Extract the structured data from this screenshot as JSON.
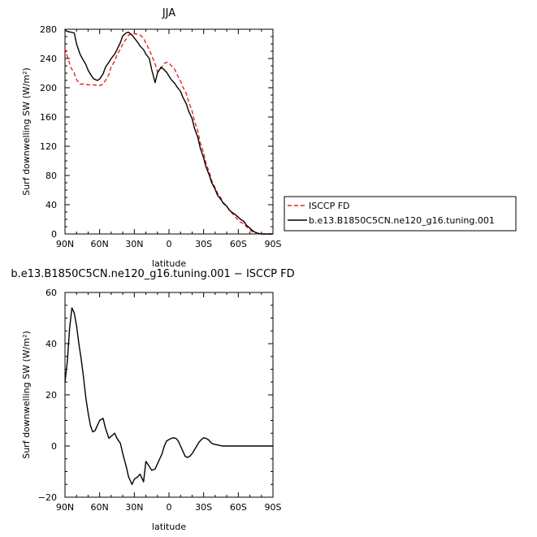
{
  "chart_data": [
    {
      "type": "line",
      "title": "JJA",
      "xlabel": "latitude",
      "ylabel": "Surf downwelling SW (W/m²)",
      "xlim": [
        90,
        -90
      ],
      "ylim": [
        0,
        280
      ],
      "xticks": [
        90,
        60,
        30,
        0,
        -30,
        -60,
        -90
      ],
      "xtick_labels": [
        "90N",
        "60N",
        "30N",
        "0",
        "30S",
        "60S",
        "90S"
      ],
      "yticks": [
        0,
        40,
        80,
        120,
        160,
        200,
        240,
        280
      ],
      "ytick_labels": [
        "0",
        "40",
        "80",
        "120",
        "160",
        "200",
        "240",
        "280"
      ],
      "legend_position": "right",
      "series": [
        {
          "name": "ISCCP FD",
          "color": "#e8231c",
          "dash": "dashed",
          "x": [
            90,
            88,
            85,
            82,
            80,
            77,
            75,
            72,
            70,
            67,
            65,
            62,
            60,
            57,
            55,
            52,
            50,
            47,
            45,
            42,
            40,
            37,
            35,
            32,
            30,
            27,
            25,
            22,
            20,
            17,
            15,
            12,
            10,
            7,
            5,
            2,
            0,
            -2,
            -5,
            -7,
            -10,
            -12,
            -15,
            -17,
            -20,
            -22,
            -25,
            -27,
            -30,
            -32,
            -35,
            -37,
            -40,
            -42,
            -45,
            -47,
            -50,
            -52,
            -55,
            -57,
            -60,
            -62,
            -65,
            -67,
            -70,
            -72,
            -75,
            -77,
            -80,
            -82,
            -85,
            -90
          ],
          "y": [
            254,
            243,
            228,
            220,
            211,
            205,
            205,
            205,
            204,
            204,
            204,
            203,
            203,
            205,
            210,
            218,
            229,
            236,
            245,
            253,
            260,
            267,
            272,
            274,
            274,
            273,
            272,
            268,
            261,
            252,
            244,
            233,
            222,
            226,
            232,
            235,
            234,
            230,
            225,
            218,
            209,
            201,
            192,
            181,
            168,
            155,
            140,
            125,
            111,
            97,
            84,
            73,
            63,
            56,
            49,
            43,
            38,
            33,
            28,
            24,
            19,
            16,
            14,
            10,
            6,
            3,
            1,
            0,
            0,
            0,
            0,
            0
          ]
        },
        {
          "name": "b.e13.B1850C5CN.ne120_g16.tuning.001",
          "color": "#000000",
          "dash": "solid",
          "x": [
            90,
            88,
            85,
            82,
            80,
            77,
            75,
            72,
            70,
            67,
            65,
            62,
            60,
            57,
            55,
            52,
            50,
            47,
            45,
            42,
            40,
            37,
            35,
            32,
            30,
            27,
            25,
            22,
            20,
            17,
            15,
            12,
            10,
            7,
            5,
            2,
            0,
            -2,
            -5,
            -7,
            -10,
            -12,
            -15,
            -17,
            -20,
            -22,
            -25,
            -27,
            -30,
            -32,
            -35,
            -37,
            -40,
            -42,
            -45,
            -47,
            -50,
            -52,
            -55,
            -57,
            -60,
            -62,
            -65,
            -67,
            -70,
            -72,
            -75,
            -77,
            -80,
            -82,
            -85,
            -90
          ],
          "y": [
            279,
            277,
            276,
            275,
            260,
            246,
            240,
            232,
            224,
            216,
            212,
            210,
            212,
            219,
            228,
            235,
            240,
            246,
            252,
            262,
            271,
            275,
            276,
            272,
            268,
            262,
            257,
            252,
            246,
            240,
            225,
            207,
            220,
            228,
            226,
            221,
            216,
            211,
            206,
            201,
            195,
            187,
            178,
            168,
            158,
            145,
            132,
            118,
            104,
            92,
            80,
            70,
            61,
            53,
            47,
            42,
            38,
            33,
            29,
            27,
            23,
            20,
            17,
            12,
            8,
            5,
            2,
            1,
            0,
            0,
            0,
            0
          ]
        }
      ]
    },
    {
      "type": "line",
      "title": "b.e13.B1850C5CN.ne120_g16.tuning.001 − ISCCP FD",
      "xlabel": "latitude",
      "ylabel": "Surf downwelling SW (W/m²)",
      "xlim": [
        90,
        -90
      ],
      "ylim": [
        -20,
        60
      ],
      "xticks": [
        90,
        60,
        30,
        0,
        -30,
        -60,
        -90
      ],
      "xtick_labels": [
        "90N",
        "60N",
        "30N",
        "0",
        "30S",
        "60S",
        "90S"
      ],
      "yticks": [
        -20,
        0,
        20,
        40,
        60
      ],
      "ytick_labels": [
        "−20",
        "0",
        "20",
        "40",
        "60"
      ],
      "series": [
        {
          "color": "#000000",
          "dash": "solid",
          "x": [
            90,
            88,
            86,
            84,
            82,
            80,
            78,
            76,
            74,
            72,
            70,
            68,
            66,
            64,
            62,
            60,
            57,
            55,
            52,
            50,
            47,
            45,
            42,
            40,
            37,
            35,
            32,
            30,
            27,
            25,
            22,
            20,
            17,
            15,
            12,
            10,
            8,
            6,
            4,
            2,
            0,
            -2,
            -4,
            -6,
            -8,
            -10,
            -12,
            -14,
            -16,
            -18,
            -20,
            -22,
            -24,
            -26,
            -28,
            -30,
            -32,
            -34,
            -36,
            -38,
            -40,
            -42,
            -44,
            -46,
            -48,
            -50,
            -52,
            -54,
            -56,
            -58,
            -60,
            -62,
            -64,
            -66,
            -68,
            -70,
            -72,
            -75,
            -78,
            -80,
            -83,
            -86,
            -90
          ],
          "y": [
            25,
            33,
            46,
            54,
            52,
            47,
            40,
            34,
            27,
            19,
            13,
            8,
            5.5,
            6,
            8,
            10,
            10.8,
            7,
            3,
            3.8,
            5,
            3,
            1,
            -3,
            -8,
            -12,
            -15,
            -13,
            -12,
            -11,
            -14,
            -6,
            -8,
            -9.5,
            -9,
            -7,
            -5,
            -3,
            0,
            2,
            2.5,
            3,
            3.2,
            3,
            2,
            0,
            -2,
            -4,
            -4.5,
            -4,
            -3,
            -1.5,
            0,
            1.5,
            2.5,
            3.2,
            3,
            2.5,
            1.5,
            0.8,
            0.6,
            0.4,
            0.2,
            0,
            0,
            0,
            0,
            0,
            0,
            0,
            0,
            0,
            0,
            0,
            0,
            0,
            0,
            0,
            0,
            0,
            0,
            0,
            0
          ]
        }
      ]
    }
  ]
}
